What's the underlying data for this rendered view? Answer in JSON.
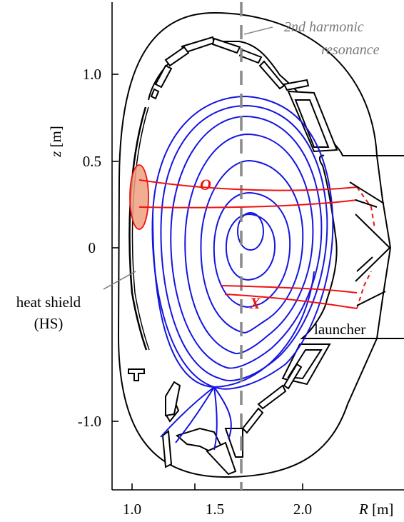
{
  "axes": {
    "x_label_var": "R",
    "x_label_unit": " [m]",
    "y_label_var": "z",
    "y_label_unit": " [m]",
    "x_ticks": [
      "1.0",
      "1.5",
      "2.0"
    ],
    "y_ticks": [
      "1.0",
      "0.5",
      "0",
      "-1.0"
    ]
  },
  "annotations": {
    "resonance_line1": "2nd  harmonic",
    "resonance_line2": "resonance",
    "heat_shield_line1": "heat shield",
    "heat_shield_line2": "(HS)",
    "launcher": "launcher",
    "o_mode": "O",
    "x_mode": "X"
  },
  "colors": {
    "flux_surfaces": "#1515e0",
    "beams": "#ee1111",
    "resonance": "#8a8a8a",
    "hs_spot": "#f0a080",
    "structure": "#000000"
  }
}
